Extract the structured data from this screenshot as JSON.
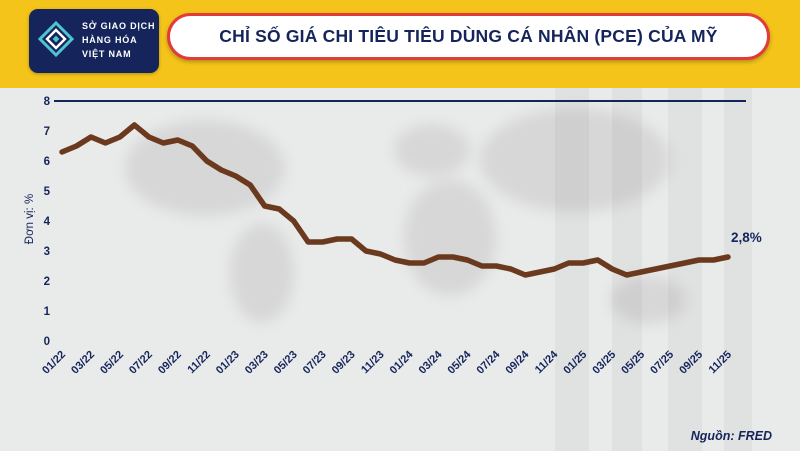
{
  "logo": {
    "line1": "SỞ GIAO DỊCH",
    "line2": "HÀNG HÓA",
    "line3": "VIỆT NAM"
  },
  "header": {
    "title": "CHỈ SỐ GIÁ CHI TIÊU TIÊU DÙNG CÁ NHÂN (PCE) CỦA MỸ"
  },
  "chart_data": {
    "type": "line",
    "title": "CHỈ SỐ GIÁ CHI TIÊU TIÊU DÙNG CÁ NHÂN (PCE) CỦA MỸ",
    "ylabel": "Đơn vị: %",
    "ylim": [
      0,
      8
    ],
    "yticks": [
      0,
      1,
      2,
      3,
      4,
      5,
      6,
      7,
      8
    ],
    "x": [
      "01/22",
      "02/22",
      "03/22",
      "04/22",
      "05/22",
      "06/22",
      "07/22",
      "08/22",
      "09/22",
      "10/22",
      "11/22",
      "12/22",
      "01/23",
      "02/23",
      "03/23",
      "04/23",
      "05/23",
      "06/23",
      "07/23",
      "08/23",
      "09/23",
      "10/23",
      "11/23",
      "12/23",
      "01/24",
      "02/24",
      "03/24",
      "04/24",
      "05/24",
      "06/24",
      "07/24",
      "08/24",
      "09/24",
      "10/24",
      "11/24",
      "12/24",
      "01/25",
      "02/25",
      "03/25",
      "04/25",
      "05/25",
      "06/25",
      "07/25",
      "08/25",
      "09/25",
      "10/25",
      "11/25"
    ],
    "visible_tick_labels": [
      "01/22",
      "03/22",
      "05/22",
      "07/22",
      "09/22",
      "11/22",
      "01/23",
      "03/23",
      "05/23",
      "07/23",
      "09/23",
      "11/23",
      "01/24",
      "03/24",
      "05/24",
      "07/24",
      "09/24",
      "11/24",
      "01/25",
      "03/25",
      "05/25",
      "07/25",
      "09/25",
      "11/25"
    ],
    "values": [
      6.3,
      6.5,
      6.8,
      6.6,
      6.8,
      7.2,
      6.8,
      6.6,
      6.7,
      6.5,
      6.0,
      5.7,
      5.5,
      5.2,
      4.5,
      4.4,
      4.0,
      3.3,
      3.3,
      3.4,
      3.4,
      3.0,
      2.9,
      2.7,
      2.6,
      2.6,
      2.8,
      2.8,
      2.7,
      2.5,
      2.5,
      2.4,
      2.2,
      2.3,
      2.4,
      2.6,
      2.6,
      2.7,
      2.4,
      2.2,
      2.3,
      2.4,
      2.5,
      2.6,
      2.7,
      2.7,
      2.8
    ],
    "annotation": "2,8%",
    "line_color": "#6b3a1e",
    "axis_color": "#15255b",
    "grid": false,
    "legend": null
  },
  "source": {
    "label": "Nguồn: FRED"
  },
  "colors": {
    "banner_yellow": "#f5c41a",
    "navy": "#15255b",
    "pill_border_red": "#e23b3b",
    "chart_background": "#e9eaea",
    "line_brown": "#6b3a1e",
    "logo_teal": "#4ec5d3"
  }
}
